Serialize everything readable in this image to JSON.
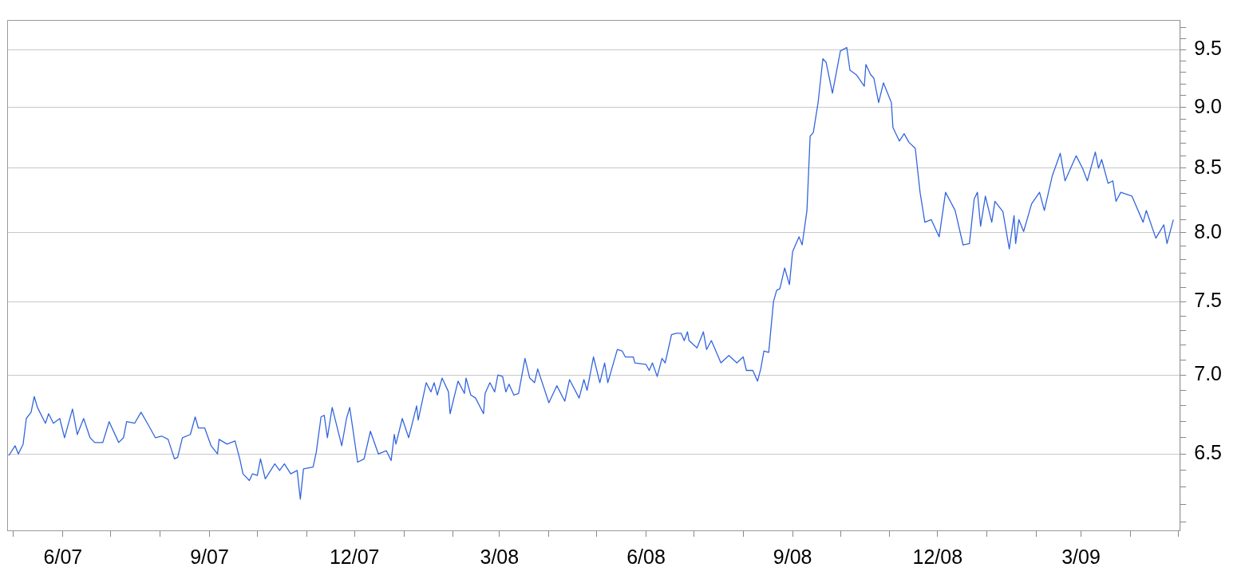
{
  "chart_data": {
    "type": "line",
    "log": true,
    "grid": "y",
    "xlim": [
      "2007-04-27",
      "2009-05-02"
    ],
    "xticks": [
      {
        "value": "2007-05-01",
        "label": null
      },
      {
        "value": "2007-06-01",
        "label": "6/07"
      },
      {
        "value": "2007-07-01",
        "label": null
      },
      {
        "value": "2007-08-01",
        "label": null
      },
      {
        "value": "2007-09-01",
        "label": "9/07"
      },
      {
        "value": "2007-10-01",
        "label": null
      },
      {
        "value": "2007-11-01",
        "label": null
      },
      {
        "value": "2007-12-01",
        "label": "12/07"
      },
      {
        "value": "2008-01-01",
        "label": null
      },
      {
        "value": "2008-02-01",
        "label": null
      },
      {
        "value": "2008-03-01",
        "label": "3/08"
      },
      {
        "value": "2008-04-01",
        "label": null
      },
      {
        "value": "2008-05-01",
        "label": null
      },
      {
        "value": "2008-06-01",
        "label": "6/08"
      },
      {
        "value": "2008-07-01",
        "label": null
      },
      {
        "value": "2008-08-01",
        "label": null
      },
      {
        "value": "2008-09-01",
        "label": "9/08"
      },
      {
        "value": "2008-10-01",
        "label": null
      },
      {
        "value": "2008-11-01",
        "label": null
      },
      {
        "value": "2008-12-01",
        "label": "12/08"
      },
      {
        "value": "2009-01-01",
        "label": null
      },
      {
        "value": "2009-02-01",
        "label": null
      },
      {
        "value": "2009-03-01",
        "label": "3/09"
      },
      {
        "value": "2009-04-01",
        "label": null
      },
      {
        "value": "2009-05-01",
        "label": null
      }
    ],
    "ylim": [
      6.05,
      9.77
    ],
    "yticks": [
      {
        "value": 6.1,
        "label": null
      },
      {
        "value": 6.2,
        "label": null
      },
      {
        "value": 6.3,
        "label": null
      },
      {
        "value": 6.4,
        "label": null
      },
      {
        "value": 6.5,
        "label": "6.5"
      },
      {
        "value": 6.6,
        "label": null
      },
      {
        "value": 6.7,
        "label": null
      },
      {
        "value": 6.8,
        "label": null
      },
      {
        "value": 6.9,
        "label": null
      },
      {
        "value": 7,
        "label": "7.0"
      },
      {
        "value": 7.1,
        "label": null
      },
      {
        "value": 7.2,
        "label": null
      },
      {
        "value": 7.3,
        "label": null
      },
      {
        "value": 7.4,
        "label": null
      },
      {
        "value": 7.5,
        "label": "7.5"
      },
      {
        "value": 7.6,
        "label": null
      },
      {
        "value": 7.7,
        "label": null
      },
      {
        "value": 7.8,
        "label": null
      },
      {
        "value": 7.9,
        "label": null
      },
      {
        "value": 8,
        "label": "8.0"
      },
      {
        "value": 8.1,
        "label": null
      },
      {
        "value": 8.2,
        "label": null
      },
      {
        "value": 8.3,
        "label": null
      },
      {
        "value": 8.4,
        "label": null
      },
      {
        "value": 8.5,
        "label": "8.5"
      },
      {
        "value": 8.6,
        "label": null
      },
      {
        "value": 8.7,
        "label": null
      },
      {
        "value": 8.8,
        "label": null
      },
      {
        "value": 8.9,
        "label": null
      },
      {
        "value": 9,
        "label": "9.0"
      },
      {
        "value": 9.1,
        "label": null
      },
      {
        "value": 9.2,
        "label": null
      },
      {
        "value": 9.3,
        "label": null
      },
      {
        "value": 9.4,
        "label": null
      },
      {
        "value": 9.5,
        "label": "9.5"
      },
      {
        "value": 9.6,
        "label": null
      },
      {
        "value": 9.7,
        "label": null
      }
    ],
    "x": [
      "2007-04-28",
      "2007-05-02",
      "2007-05-04",
      "2007-05-07",
      "2007-05-09",
      "2007-05-12",
      "2007-05-14",
      "2007-05-16",
      "2007-05-21",
      "2007-05-23",
      "2007-05-26",
      "2007-05-30",
      "2007-06-02",
      "2007-06-07",
      "2007-06-10",
      "2007-06-14",
      "2007-06-18",
      "2007-06-21",
      "2007-06-26",
      "2007-06-30",
      "2007-07-06",
      "2007-07-09",
      "2007-07-11",
      "2007-07-16",
      "2007-07-20",
      "2007-07-24",
      "2007-07-29",
      "2007-08-02",
      "2007-08-06",
      "2007-08-10",
      "2007-08-12",
      "2007-08-15",
      "2007-08-20",
      "2007-08-23",
      "2007-08-25",
      "2007-08-29",
      "2007-09-02",
      "2007-09-06",
      "2007-09-07",
      "2007-09-12",
      "2007-09-17",
      "2007-09-20",
      "2007-09-22",
      "2007-09-26",
      "2007-09-28",
      "2007-10-01",
      "2007-10-03",
      "2007-10-06",
      "2007-10-12",
      "2007-10-15",
      "2007-10-18",
      "2007-10-22",
      "2007-10-26",
      "2007-10-28",
      "2007-10-30",
      "2007-11-05",
      "2007-11-07",
      "2007-11-10",
      "2007-11-12",
      "2007-11-14",
      "2007-11-17",
      "2007-11-23",
      "2007-11-26",
      "2007-11-28",
      "2007-12-03",
      "2007-12-07",
      "2007-12-11",
      "2007-12-16",
      "2007-12-21",
      "2007-12-24",
      "2007-12-26",
      "2007-12-27",
      "2007-12-31",
      "2008-01-04",
      "2008-01-09",
      "2008-01-10",
      "2008-01-15",
      "2008-01-18",
      "2008-01-20",
      "2008-01-22",
      "2008-01-25",
      "2008-01-29",
      "2008-01-30",
      "2008-02-04",
      "2008-02-08",
      "2008-02-09",
      "2008-02-12",
      "2008-02-15",
      "2008-02-20",
      "2008-02-21",
      "2008-02-24",
      "2008-02-27",
      "2008-02-29",
      "2008-03-03",
      "2008-03-05",
      "2008-03-07",
      "2008-03-10",
      "2008-03-13",
      "2008-03-17",
      "2008-03-20",
      "2008-03-23",
      "2008-03-25",
      "2008-04-01",
      "2008-04-06",
      "2008-04-11",
      "2008-04-14",
      "2008-04-20",
      "2008-04-23",
      "2008-04-25",
      "2008-04-29",
      "2008-05-03",
      "2008-05-06",
      "2008-05-08",
      "2008-05-14",
      "2008-05-17",
      "2008-05-19",
      "2008-05-24",
      "2008-05-25",
      "2008-06-01",
      "2008-06-03",
      "2008-06-05",
      "2008-06-08",
      "2008-06-11",
      "2008-06-13",
      "2008-06-17",
      "2008-06-20",
      "2008-06-23",
      "2008-06-25",
      "2008-06-27",
      "2008-06-28",
      "2008-07-03",
      "2008-07-07",
      "2008-07-09",
      "2008-07-12",
      "2008-07-14",
      "2008-07-18",
      "2008-07-23",
      "2008-07-28",
      "2008-08-01",
      "2008-08-03",
      "2008-08-07",
      "2008-08-10",
      "2008-08-12",
      "2008-08-14",
      "2008-08-17",
      "2008-08-20",
      "2008-08-22",
      "2008-08-24",
      "2008-08-27",
      "2008-08-30",
      "2008-09-01",
      "2008-09-05",
      "2008-09-07",
      "2008-09-10",
      "2008-09-12",
      "2008-09-14",
      "2008-09-17",
      "2008-09-20",
      "2008-09-22",
      "2008-09-26",
      "2008-10-01",
      "2008-10-05",
      "2008-10-07",
      "2008-10-11",
      "2008-10-16",
      "2008-10-17",
      "2008-10-20",
      "2008-10-22",
      "2008-10-25",
      "2008-10-28",
      "2008-11-02",
      "2008-11-03",
      "2008-11-07",
      "2008-11-10",
      "2008-11-13",
      "2008-11-17",
      "2008-11-20",
      "2008-11-23",
      "2008-11-27",
      "2008-12-02",
      "2008-12-06",
      "2008-12-12",
      "2008-12-17",
      "2008-12-21",
      "2008-12-24",
      "2008-12-26",
      "2008-12-28",
      "2008-12-31",
      "2009-01-04",
      "2009-01-06",
      "2009-01-11",
      "2009-01-15",
      "2009-01-18",
      "2009-01-19",
      "2009-01-21",
      "2009-01-24",
      "2009-01-29",
      "2009-02-03",
      "2009-02-06",
      "2009-02-11",
      "2009-02-16",
      "2009-02-19",
      "2009-02-26",
      "2009-03-02",
      "2009-03-05",
      "2009-03-10",
      "2009-03-12",
      "2009-03-14",
      "2009-03-18",
      "2009-03-21",
      "2009-03-23",
      "2009-03-26",
      "2009-04-02",
      "2009-04-09",
      "2009-04-11",
      "2009-04-17",
      "2009-04-22",
      "2009-04-24",
      "2009-04-28"
    ],
    "series": [
      {
        "color": "#3366dd",
        "values": [
          6.49,
          6.55,
          6.5,
          6.56,
          6.72,
          6.76,
          6.86,
          6.79,
          6.69,
          6.75,
          6.69,
          6.72,
          6.6,
          6.78,
          6.62,
          6.72,
          6.6,
          6.57,
          6.57,
          6.7,
          6.57,
          6.6,
          6.7,
          6.69,
          6.76,
          6.69,
          6.6,
          6.61,
          6.59,
          6.47,
          6.48,
          6.6,
          6.62,
          6.73,
          6.66,
          6.66,
          6.55,
          6.5,
          6.59,
          6.56,
          6.58,
          6.47,
          6.38,
          6.34,
          6.38,
          6.37,
          6.47,
          6.35,
          6.44,
          6.4,
          6.44,
          6.38,
          6.4,
          6.23,
          6.41,
          6.42,
          6.51,
          6.73,
          6.74,
          6.6,
          6.79,
          6.55,
          6.72,
          6.79,
          6.45,
          6.47,
          6.64,
          6.5,
          6.52,
          6.46,
          6.62,
          6.56,
          6.72,
          6.6,
          6.8,
          6.71,
          6.95,
          6.89,
          6.95,
          6.87,
          6.98,
          6.89,
          6.75,
          6.96,
          6.88,
          6.98,
          6.87,
          6.85,
          6.75,
          6.88,
          6.95,
          6.89,
          7.0,
          6.99,
          6.89,
          6.94,
          6.87,
          6.88,
          7.11,
          6.98,
          6.95,
          7.04,
          6.82,
          6.93,
          6.83,
          6.97,
          6.85,
          6.97,
          6.9,
          7.12,
          6.95,
          7.08,
          6.95,
          7.17,
          7.16,
          7.12,
          7.12,
          7.08,
          7.07,
          7.03,
          7.08,
          6.99,
          7.11,
          7.08,
          7.27,
          7.28,
          7.28,
          7.23,
          7.29,
          7.23,
          7.18,
          7.29,
          7.17,
          7.23,
          7.18,
          7.08,
          7.13,
          7.08,
          7.12,
          7.03,
          7.03,
          6.96,
          7.04,
          7.16,
          7.15,
          7.5,
          7.58,
          7.59,
          7.74,
          7.62,
          7.86,
          7.97,
          7.91,
          8.17,
          8.76,
          8.79,
          9.04,
          9.42,
          9.39,
          9.12,
          9.49,
          9.52,
          9.32,
          9.28,
          9.18,
          9.37,
          9.28,
          9.25,
          9.04,
          9.21,
          9.04,
          8.83,
          8.72,
          8.78,
          8.71,
          8.66,
          8.31,
          8.08,
          8.1,
          7.97,
          8.31,
          8.17,
          7.91,
          7.92,
          8.26,
          8.31,
          8.05,
          8.28,
          8.08,
          8.24,
          8.16,
          7.88,
          8.13,
          7.92,
          8.1,
          8.01,
          8.22,
          8.31,
          8.17,
          8.44,
          8.62,
          8.4,
          8.6,
          8.5,
          8.4,
          8.63,
          8.5,
          8.57,
          8.38,
          8.4,
          8.24,
          8.31,
          8.28,
          8.08,
          8.17,
          7.96,
          8.06,
          7.92,
          8.1
        ]
      }
    ]
  }
}
